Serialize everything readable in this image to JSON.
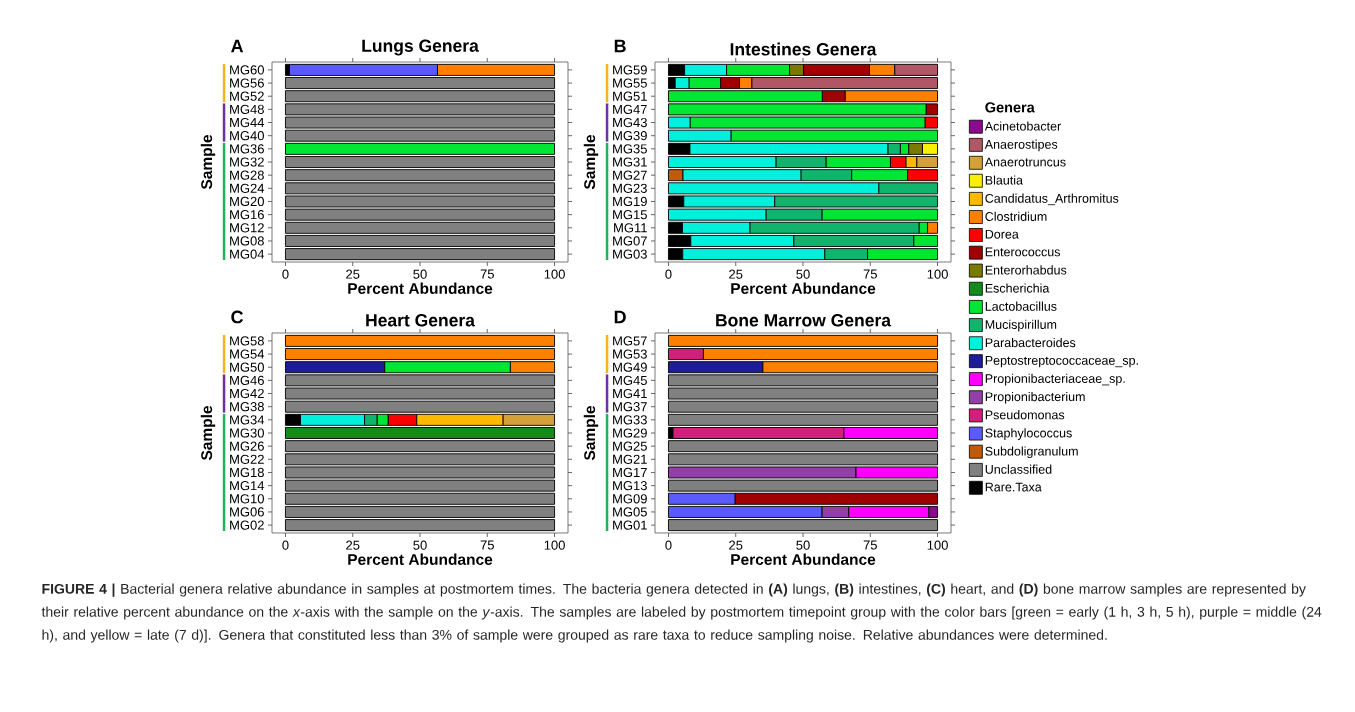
{
  "chart_data": [
    {
      "type": "bar",
      "orientation": "horizontal",
      "stacked": true,
      "title": "Lungs Genera",
      "xlabel": "Percent Abundance",
      "ylabel": "Sample",
      "annotations": [
        "A"
      ],
      "categories": [
        "MG60",
        "MG56",
        "MG52",
        "MG48",
        "MG44",
        "MG40",
        "MG36",
        "MG32",
        "MG28",
        "MG24",
        "MG20",
        "MG16",
        "MG12",
        "MG08",
        "MG04"
      ],
      "xlim": [
        -5,
        105
      ],
      "xticks": [
        0,
        25,
        50,
        75,
        100
      ],
      "series": [
        {
          "color": "#000000",
          "values": [
            1.5,
            null,
            null,
            null,
            null,
            null,
            null,
            null,
            null,
            null,
            null,
            null,
            null,
            null,
            null
          ]
        },
        {
          "color": "#808080",
          "values": [
            null,
            100,
            100,
            100,
            100,
            100,
            null,
            100,
            100,
            100,
            100,
            100,
            100,
            100,
            100
          ]
        },
        {
          "color": "#5a5aff",
          "values": [
            55,
            null,
            null,
            null,
            null,
            null,
            null,
            null,
            null,
            null,
            null,
            null,
            null,
            null,
            null
          ]
        },
        {
          "color": "#00e632",
          "values": [
            null,
            null,
            null,
            null,
            null,
            null,
            100,
            null,
            null,
            null,
            null,
            null,
            null,
            null,
            null
          ]
        },
        {
          "color": "#ff8000",
          "values": [
            43.5,
            null,
            null,
            null,
            null,
            null,
            null,
            null,
            null,
            null,
            null,
            null,
            null,
            null,
            null
          ]
        }
      ]
    },
    {
      "type": "bar",
      "orientation": "horizontal",
      "stacked": true,
      "title": "Intestines Genera",
      "xlabel": "Percent Abundance",
      "ylabel": "Sample",
      "annotations": [
        "B"
      ],
      "legend": "right",
      "legend_title": "Genera",
      "categories": [
        "MG59",
        "MG55",
        "MG51",
        "MG47",
        "MG43",
        "MG39",
        "MG35",
        "MG31",
        "MG27",
        "MG23",
        "MG19",
        "MG15",
        "MG11",
        "MG07",
        "MG03"
      ],
      "xlim": [
        -5,
        105
      ],
      "xticks": [
        0,
        25,
        50,
        75,
        100
      ],
      "series": [
        {
          "name": "Rare.Taxa",
          "color": "#000000",
          "values": [
            6,
            2.5,
            null,
            null,
            null,
            null,
            8,
            null,
            null,
            null,
            5.7,
            null,
            5.2,
            8.3,
            5.3
          ]
        },
        {
          "name": "Unclassified",
          "color": "#808080",
          "values": [
            null,
            null,
            null,
            null,
            null,
            null,
            null,
            null,
            null,
            null,
            null,
            null,
            null,
            null,
            null
          ]
        },
        {
          "name": "Subdoligranulum",
          "color": "#c25a0a",
          "values": [
            null,
            null,
            null,
            null,
            null,
            null,
            null,
            null,
            5.4,
            null,
            null,
            null,
            null,
            null,
            null
          ]
        },
        {
          "name": "Staphylococcus",
          "color": "#5a5aff",
          "values": [
            null,
            null,
            null,
            null,
            null,
            null,
            null,
            null,
            null,
            null,
            null,
            null,
            null,
            null,
            null
          ]
        },
        {
          "name": "Pseudomonas",
          "color": "#d21f7c",
          "values": [
            null,
            null,
            null,
            null,
            null,
            null,
            null,
            null,
            null,
            null,
            null,
            null,
            null,
            null,
            null
          ]
        },
        {
          "name": "Propionibacterium",
          "color": "#9240a8",
          "values": [
            null,
            null,
            null,
            null,
            null,
            null,
            null,
            null,
            null,
            null,
            null,
            null,
            null,
            null,
            null
          ]
        },
        {
          "name": "Propionibacteriaceae_sp.",
          "color": "#ff00ff",
          "values": [
            null,
            null,
            null,
            null,
            null,
            null,
            null,
            null,
            null,
            null,
            null,
            null,
            null,
            null,
            null
          ]
        },
        {
          "name": "Peptostreptococcaceae_sp.",
          "color": "#1c1c9c",
          "values": [
            null,
            null,
            null,
            null,
            null,
            null,
            null,
            null,
            null,
            null,
            null,
            null,
            null,
            null,
            null
          ]
        },
        {
          "name": "Parabacteroides",
          "color": "#00f0dc",
          "values": [
            15.6,
            5.2,
            null,
            null,
            8.1,
            23.3,
            73.6,
            40,
            43.9,
            78.2,
            33.8,
            36.3,
            25.1,
            38.3,
            52.8
          ]
        },
        {
          "name": "Mucispirillum",
          "color": "#10b46c",
          "values": [
            null,
            null,
            null,
            null,
            null,
            null,
            4.6,
            18.6,
            18.8,
            21.8,
            60.5,
            20.8,
            62.9,
            44.6,
            15.9
          ]
        },
        {
          "name": "Lactobacillus",
          "color": "#00e632",
          "values": [
            23.4,
            11.7,
            57.2,
            95.8,
            87.3,
            76.7,
            3.1,
            23.9,
            20.8,
            null,
            null,
            42.9,
            3.1,
            8.8,
            26
          ]
        },
        {
          "name": "Escherichia",
          "color": "#138a1c",
          "values": [
            null,
            null,
            null,
            null,
            null,
            null,
            null,
            null,
            null,
            null,
            null,
            null,
            null,
            null,
            null
          ]
        },
        {
          "name": "Enterorhabdus",
          "color": "#7a7a00",
          "values": [
            5.2,
            null,
            null,
            null,
            null,
            null,
            5.1,
            null,
            null,
            null,
            null,
            null,
            null,
            null,
            null
          ]
        },
        {
          "name": "Enterococcus",
          "color": "#a00000",
          "values": [
            24.5,
            7,
            8.5,
            4.2,
            null,
            null,
            null,
            null,
            null,
            null,
            null,
            null,
            null,
            null,
            null
          ]
        },
        {
          "name": "Dorea",
          "color": "#ff0000",
          "values": [
            null,
            null,
            null,
            null,
            4.6,
            null,
            null,
            5.8,
            11.1,
            null,
            null,
            null,
            null,
            null,
            null
          ]
        },
        {
          "name": "Clostridium",
          "color": "#ff8000",
          "values": [
            9.4,
            4.6,
            34.3,
            null,
            null,
            null,
            null,
            null,
            null,
            null,
            null,
            null,
            3.7,
            null,
            null
          ]
        },
        {
          "name": "Candidatus_Arthromitus",
          "color": "#ffb800",
          "values": [
            null,
            null,
            null,
            null,
            null,
            null,
            null,
            4,
            null,
            null,
            null,
            null,
            null,
            null,
            null
          ]
        },
        {
          "name": "Blautia",
          "color": "#f8f000",
          "values": [
            null,
            null,
            null,
            null,
            null,
            null,
            5.6,
            null,
            null,
            null,
            null,
            null,
            null,
            null,
            null
          ]
        },
        {
          "name": "Anaerotruncus",
          "color": "#d4a03a",
          "values": [
            null,
            null,
            null,
            null,
            null,
            null,
            null,
            7.7,
            null,
            null,
            null,
            null,
            null,
            null,
            null
          ]
        },
        {
          "name": "Anaerostipes",
          "color": "#b05664",
          "values": [
            15.9,
            69,
            null,
            null,
            null,
            null,
            null,
            null,
            null,
            null,
            null,
            null,
            null,
            null,
            null
          ]
        },
        {
          "name": "Acinetobacter",
          "color": "#8c0a8c",
          "values": [
            null,
            null,
            null,
            null,
            null,
            null,
            null,
            null,
            null,
            null,
            null,
            null,
            null,
            null,
            null
          ]
        }
      ]
    },
    {
      "type": "bar",
      "orientation": "horizontal",
      "stacked": true,
      "title": "Heart Genera",
      "xlabel": "Percent Abundance",
      "ylabel": "Sample",
      "annotations": [
        "C"
      ],
      "categories": [
        "MG58",
        "MG54",
        "MG50",
        "MG46",
        "MG42",
        "MG38",
        "MG34",
        "MG30",
        "MG26",
        "MG22",
        "MG18",
        "MG14",
        "MG10",
        "MG06",
        "MG02"
      ],
      "xlim": [
        -5,
        105
      ],
      "xticks": [
        0,
        25,
        50,
        75,
        100
      ],
      "series": [
        {
          "color": "#000000",
          "values": [
            null,
            null,
            null,
            null,
            null,
            null,
            5.6,
            null,
            null,
            null,
            null,
            null,
            null,
            null,
            null
          ]
        },
        {
          "color": "#808080",
          "values": [
            null,
            null,
            null,
            100,
            100,
            100,
            null,
            null,
            100,
            100,
            100,
            100,
            100,
            100,
            100
          ]
        },
        {
          "color": "#1c1c9c",
          "values": [
            null,
            null,
            36.9,
            null,
            null,
            null,
            null,
            null,
            null,
            null,
            null,
            null,
            null,
            null,
            null
          ]
        },
        {
          "color": "#00f0dc",
          "values": [
            null,
            null,
            null,
            null,
            null,
            null,
            23.8,
            null,
            null,
            null,
            null,
            null,
            null,
            null,
            null
          ]
        },
        {
          "color": "#10b46c",
          "values": [
            null,
            null,
            null,
            null,
            null,
            null,
            4.7,
            null,
            null,
            null,
            null,
            null,
            null,
            null,
            null
          ]
        },
        {
          "color": "#00e632",
          "values": [
            null,
            null,
            46.7,
            null,
            null,
            null,
            4.1,
            null,
            null,
            null,
            null,
            null,
            null,
            null,
            null
          ]
        },
        {
          "color": "#138a1c",
          "values": [
            null,
            null,
            null,
            null,
            null,
            null,
            null,
            100,
            null,
            null,
            null,
            null,
            null,
            null,
            null
          ]
        },
        {
          "color": "#ff0000",
          "values": [
            null,
            null,
            null,
            null,
            null,
            null,
            10.6,
            null,
            null,
            null,
            null,
            null,
            null,
            null,
            null
          ]
        },
        {
          "color": "#ff8000",
          "values": [
            100,
            100,
            16.4,
            null,
            null,
            null,
            null,
            null,
            null,
            null,
            null,
            null,
            null,
            null,
            null
          ]
        },
        {
          "color": "#ffb800",
          "values": [
            null,
            null,
            null,
            null,
            null,
            null,
            32.1,
            null,
            null,
            null,
            null,
            null,
            null,
            null,
            null
          ]
        },
        {
          "color": "#d4a03a",
          "values": [
            null,
            null,
            null,
            null,
            null,
            null,
            19.1,
            null,
            null,
            null,
            null,
            null,
            null,
            null,
            null
          ]
        }
      ]
    },
    {
      "type": "bar",
      "orientation": "horizontal",
      "stacked": true,
      "title": "Bone Marrow Genera",
      "xlabel": "Percent Abundance",
      "ylabel": "Sample",
      "annotations": [
        "D",
        "**FIGURE 4 |** Bacterial genera relative abundance in samples at postmortem times. The bacteria genera detected in **(A)** lungs, **(B)** intestines, **(C)** heart, and **(D)** bone marrow samples are represented by their relative percent abundance on the *x*-axis with the sample on the *y*-axis. The samples are labeled by postmortem timepoint group with the color bars [green = early (1 h, 3 h, 5 h), purple = middle (24 h), and yellow = late (7 d)]. Genera that constituted less than 3% of sample were grouped as rare taxa to reduce sampling noise. Relative abundances were determined."
      ],
      "categories": [
        "MG57",
        "MG53",
        "MG49",
        "MG45",
        "MG41",
        "MG37",
        "MG33",
        "MG29",
        "MG25",
        "MG21",
        "MG17",
        "MG13",
        "MG09",
        "MG05",
        "MG01"
      ],
      "xlim": [
        -5,
        105
      ],
      "xticks": [
        0,
        25,
        50,
        75,
        100
      ],
      "series": [
        {
          "color": "#000000",
          "values": [
            null,
            null,
            null,
            null,
            null,
            null,
            null,
            1.7,
            null,
            null,
            null,
            null,
            null,
            null,
            null
          ]
        },
        {
          "color": "#808080",
          "values": [
            null,
            null,
            null,
            100,
            100,
            100,
            100,
            null,
            100,
            100,
            null,
            100,
            null,
            null,
            100
          ]
        },
        {
          "color": "#5a5aff",
          "values": [
            null,
            null,
            null,
            null,
            null,
            null,
            null,
            null,
            null,
            null,
            null,
            null,
            24.8,
            57.1,
            null
          ]
        },
        {
          "color": "#d21f7c",
          "values": [
            null,
            13,
            null,
            null,
            null,
            null,
            null,
            63.5,
            null,
            null,
            null,
            null,
            null,
            null,
            null
          ]
        },
        {
          "color": "#9240a8",
          "values": [
            null,
            null,
            null,
            null,
            null,
            null,
            null,
            null,
            null,
            null,
            69.7,
            null,
            null,
            9.9,
            null
          ]
        },
        {
          "color": "#ff00ff",
          "values": [
            null,
            null,
            null,
            null,
            null,
            null,
            null,
            34.8,
            null,
            null,
            30.3,
            null,
            null,
            29.8,
            null
          ]
        },
        {
          "color": "#1c1c9c",
          "values": [
            null,
            null,
            35.1,
            null,
            null,
            null,
            null,
            null,
            null,
            null,
            null,
            null,
            null,
            null,
            null
          ]
        },
        {
          "color": "#a00000",
          "values": [
            null,
            null,
            null,
            null,
            null,
            null,
            null,
            null,
            null,
            null,
            null,
            null,
            75.2,
            null,
            null
          ]
        },
        {
          "color": "#ff8000",
          "values": [
            100,
            87,
            64.9,
            null,
            null,
            null,
            null,
            null,
            null,
            null,
            null,
            null,
            null,
            null,
            null
          ]
        },
        {
          "color": "#8c0a8c",
          "values": [
            null,
            null,
            null,
            null,
            null,
            null,
            null,
            null,
            null,
            null,
            null,
            null,
            null,
            3.2,
            null
          ]
        }
      ]
    }
  ]
}
